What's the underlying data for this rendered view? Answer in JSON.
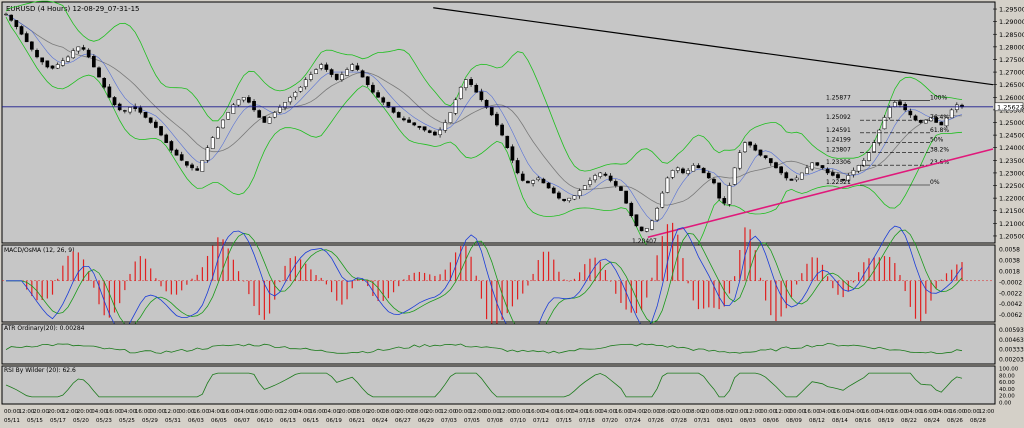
{
  "chart_data": [
    {
      "type": "candlestick",
      "title": "EURUSD (4 Hours)  12-08-29_07-31-15",
      "y_axis_labels": [
        "1.29500",
        "1.29000",
        "1.28500",
        "1.28000",
        "1.27500",
        "1.27000",
        "1.26500",
        "1.26000",
        "1.25500",
        "1.25000",
        "1.24500",
        "1.24000",
        "1.23500",
        "1.23000",
        "1.22500",
        "1.22000",
        "1.21500",
        "1.21000",
        "1.20500"
      ],
      "ylim": [
        1.203,
        1.297
      ],
      "current_price": "1.25622",
      "low_label": "1.20407",
      "indicators": [
        "Bollinger Bands",
        "Moving Average"
      ],
      "fib_levels": [
        {
          "price": "1.25877",
          "pct": "100%"
        },
        {
          "price": "1.25092",
          "pct": "76.4%"
        },
        {
          "price": "1.24591",
          "pct": "61.8%"
        },
        {
          "price": "1.24199",
          "pct": "50%"
        },
        {
          "price": "1.23807",
          "pct": "38.2%"
        },
        {
          "price": "1.23306",
          "pct": "23.6%"
        },
        {
          "price": "1.22521",
          "pct": "0%"
        }
      ],
      "close_series": [
        1.293,
        1.2905,
        1.288,
        1.285,
        1.282,
        1.279,
        1.276,
        1.274,
        1.272,
        1.2715,
        1.273,
        1.2745,
        1.276,
        1.2785,
        1.28,
        1.279,
        1.276,
        1.272,
        1.268,
        1.264,
        1.26,
        1.257,
        1.255,
        1.2545,
        1.256,
        1.2555,
        1.254,
        1.252,
        1.25,
        1.248,
        1.245,
        1.242,
        1.239,
        1.237,
        1.235,
        1.233,
        1.232,
        1.231,
        1.235,
        1.24,
        1.244,
        1.248,
        1.251,
        1.254,
        1.257,
        1.259,
        1.26,
        1.258,
        1.255,
        1.252,
        1.25,
        1.252,
        1.254,
        1.256,
        1.258,
        1.26,
        1.262,
        1.264,
        1.267,
        1.269,
        1.271,
        1.273,
        1.271,
        1.269,
        1.267,
        1.269,
        1.271,
        1.273,
        1.271,
        1.268,
        1.265,
        1.262,
        1.26,
        1.258,
        1.256,
        1.254,
        1.252,
        1.251,
        1.25,
        1.249,
        1.248,
        1.247,
        1.246,
        1.245,
        1.247,
        1.25,
        1.254,
        1.259,
        1.264,
        1.267,
        1.265,
        1.262,
        1.259,
        1.256,
        1.253,
        1.249,
        1.245,
        1.24,
        1.235,
        1.23,
        1.227,
        1.226,
        1.227,
        1.228,
        1.226,
        1.224,
        1.222,
        1.22,
        1.219,
        1.22,
        1.221,
        1.223,
        1.225,
        1.227,
        1.229,
        1.23,
        1.229,
        1.227,
        1.225,
        1.223,
        1.218,
        1.213,
        1.209,
        1.207,
        1.208,
        1.211,
        1.216,
        1.222,
        1.228,
        1.231,
        1.232,
        1.23,
        1.231,
        1.233,
        1.232,
        1.23,
        1.228,
        1.226,
        1.22,
        1.218,
        1.225,
        1.232,
        1.238,
        1.242,
        1.241,
        1.239,
        1.237,
        1.236,
        1.234,
        1.232,
        1.23,
        1.228,
        1.227,
        1.228,
        1.23,
        1.232,
        1.234,
        1.233,
        1.232,
        1.23,
        1.229,
        1.228,
        1.227,
        1.229,
        1.231,
        1.233,
        1.235,
        1.238,
        1.242,
        1.247,
        1.252,
        1.256,
        1.258,
        1.257,
        1.255,
        1.253,
        1.251,
        1.25,
        1.251,
        1.252,
        1.25,
        1.249,
        1.252,
        1.255,
        1.257,
        1.2562
      ],
      "trendlines": [
        {
          "name": "resistance",
          "color": "#000000",
          "from": [
            0.434,
            1.2955
          ],
          "to": [
            1.0,
            1.265
          ]
        },
        {
          "name": "support",
          "color": "#e0187a",
          "from": [
            0.651,
            1.2045
          ],
          "to": [
            1.0,
            1.2395
          ]
        }
      ]
    },
    {
      "type": "line",
      "title": "MACD/OsMA (12, 26, 9)",
      "y_axis_labels": [
        "0.0058",
        "0.0038",
        "0.0018",
        "-0.0002",
        "-0.0022",
        "-0.0042",
        "-0.0062"
      ],
      "ylim": [
        -0.0072,
        0.0062
      ]
    },
    {
      "type": "line",
      "title": "ATR Ordinary(20): 0.00284",
      "y_axis_labels": [
        "0.00593",
        "0.00463",
        "0.00333",
        "0.00203"
      ],
      "ylim": [
        0.0016,
        0.0064
      ]
    },
    {
      "type": "line",
      "title": "RSI By Wilder (20): 62.6",
      "y_axis_labels": [
        "100.00",
        "80.00",
        "60.00",
        "40.00",
        "20.00",
        "0.00"
      ],
      "ylim": [
        0,
        100
      ]
    }
  ],
  "x_axis": {
    "times": [
      "00:00",
      "12:00",
      "20:00",
      "20:00",
      "12:00",
      "20:00",
      "04:00",
      "16:00",
      "04:00",
      "16:00",
      "00:00",
      "12:00",
      "00:00",
      "16:00",
      "04:00",
      "16:00",
      "04:00",
      "16:00",
      "00:00",
      "12:00",
      "04:00",
      "16:00",
      "04:00",
      "20:00",
      "08:00",
      "20:00",
      "08:00",
      "20:00",
      "08:00",
      "20:00",
      "12:00",
      "00:00",
      "12:00",
      "00:00",
      "12:00",
      "00:00",
      "16:00",
      "04:00",
      "16:00",
      "04:00",
      "16:00",
      "04:00",
      "16:00",
      "04:00",
      "20:00",
      "08:00",
      "20:00",
      "08:00",
      "20:00",
      "08:00",
      "20:00",
      "12:00",
      "00:00",
      "12:00",
      "00:00",
      "16:00",
      "04:00",
      "16:00",
      "04:00",
      "16:00",
      "04:00",
      "16:00",
      "04:00",
      "16:00",
      "04:00",
      "16:00",
      "00:00",
      "12:00"
    ],
    "dates": [
      "05/11",
      "05/15",
      "05/17",
      "05/20",
      "05/23",
      "05/25",
      "05/29",
      "05/31",
      "06/03",
      "06/05",
      "06/07",
      "06/10",
      "06/13",
      "06/15",
      "06/19",
      "06/21",
      "06/24",
      "06/27",
      "06/29",
      "07/03",
      "07/05",
      "07/08",
      "07/10",
      "07/12",
      "07/15",
      "07/18",
      "07/20",
      "07/24",
      "07/26",
      "07/28",
      "07/31",
      "08/01",
      "08/03",
      "08/06",
      "08/09",
      "08/12",
      "08/14",
      "08/16",
      "08/19",
      "08/22",
      "08/24",
      "08/26",
      "08/28"
    ]
  },
  "colors": {
    "bull": "#ffffff",
    "bear": "#000000",
    "bb": "#1fbf1f",
    "ma1": "#3b5bdb",
    "ma2": "#7a7a7a",
    "hist": "#e02020",
    "macd_signal": "#1b9a1b",
    "macd_line": "#1a3cd8",
    "price_line": "#1a1a8c",
    "fib": "#000000"
  }
}
